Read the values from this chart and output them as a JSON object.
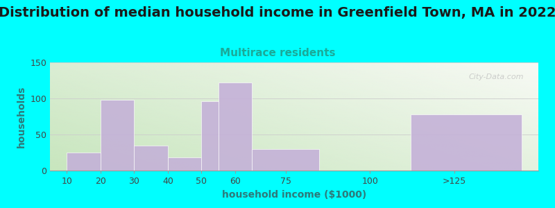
{
  "title": "Distribution of median household income in Greenfield Town, MA in 2022",
  "subtitle": "Multirace residents",
  "xlabel": "household income ($1000)",
  "ylabel": "households",
  "background_color": "#00FFFF",
  "bar_color": "#C4B0D8",
  "bar_edgecolor": "#FFFFFF",
  "plot_bg_left": "#C8E6C0",
  "plot_bg_right": "#F5F5F0",
  "watermark": "City-Data.com",
  "title_fontsize": 14,
  "subtitle_fontsize": 11,
  "axis_label_fontsize": 10,
  "tick_fontsize": 9,
  "title_color": "#1A1A1A",
  "subtitle_color": "#1AAA99",
  "axis_label_color": "#2D7A7A",
  "tick_color": "#444444",
  "ylim": [
    0,
    150
  ],
  "yticks": [
    0,
    50,
    100,
    150
  ],
  "bin_lefts": [
    10,
    20,
    30,
    40,
    50,
    55,
    65,
    85,
    112
  ],
  "bin_rights": [
    20,
    30,
    40,
    50,
    55,
    65,
    85,
    112,
    145
  ],
  "bin_values": [
    25,
    98,
    35,
    18,
    96,
    122,
    30,
    0,
    78
  ],
  "xtick_positions": [
    10,
    20,
    30,
    40,
    50,
    60,
    75,
    100,
    125
  ],
  "xtick_labels": [
    "10",
    "20",
    "30",
    "40",
    "50",
    "60",
    "75",
    "100",
    ">125"
  ]
}
